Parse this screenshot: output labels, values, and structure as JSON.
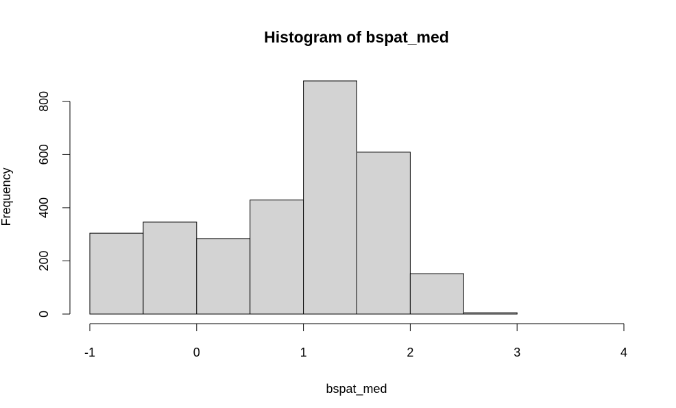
{
  "chart_data": {
    "type": "bar",
    "title": "Histogram of bspat_med",
    "xlabel": "bspat_med",
    "ylabel": "Frequency",
    "bins": [
      {
        "start": -1.0,
        "end": -0.5,
        "count": 304
      },
      {
        "start": -0.5,
        "end": 0.0,
        "count": 346
      },
      {
        "start": 0.0,
        "end": 0.5,
        "count": 284
      },
      {
        "start": 0.5,
        "end": 1.0,
        "count": 429
      },
      {
        "start": 1.0,
        "end": 1.5,
        "count": 877
      },
      {
        "start": 1.5,
        "end": 2.0,
        "count": 609
      },
      {
        "start": 2.0,
        "end": 2.5,
        "count": 152
      },
      {
        "start": 2.5,
        "end": 3.0,
        "count": 5
      },
      {
        "start": 3.0,
        "end": 3.5,
        "count": 0
      },
      {
        "start": 3.5,
        "end": 4.0,
        "count": 0
      }
    ],
    "xlim": [
      -1,
      4
    ],
    "ylim": [
      0,
      877
    ],
    "x_ticks": [
      -1,
      0,
      1,
      2,
      3,
      4
    ],
    "x_tick_labels": [
      "-1",
      "0",
      "1",
      "2",
      "3",
      "4"
    ],
    "y_ticks": [
      0,
      200,
      400,
      600,
      800
    ],
    "y_tick_labels": [
      "0",
      "200",
      "400",
      "600",
      "800"
    ],
    "bar_fill": "#d3d3d3",
    "bar_stroke": "#000000",
    "grid": false
  }
}
